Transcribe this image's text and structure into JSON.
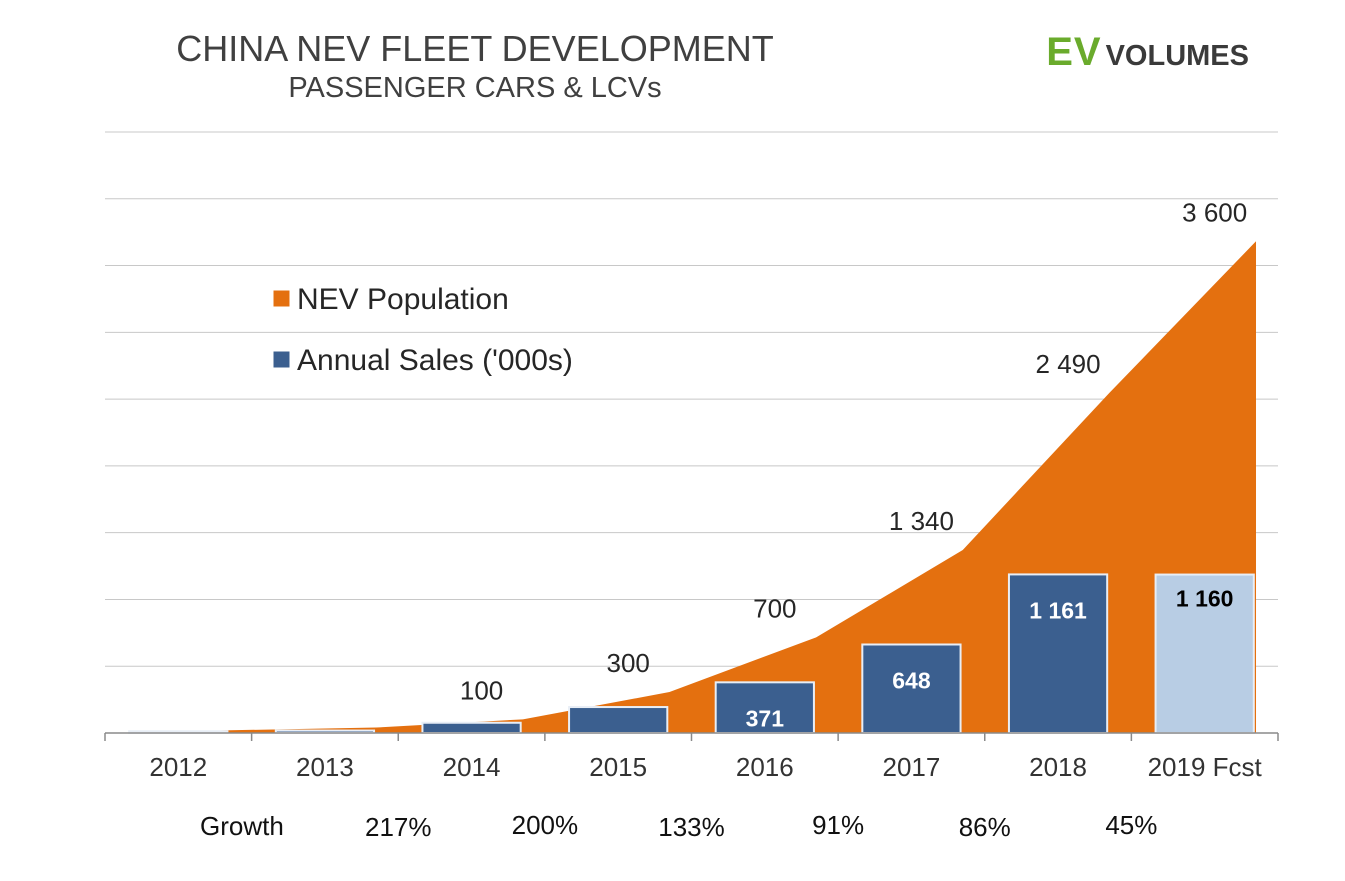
{
  "header": {
    "title": "CHINA NEV FLEET DEVELOPMENT",
    "subtitle": "PASSENGER CARS & LCVs"
  },
  "logo": {
    "ev": "EV",
    "volumes": "VOLUMES"
  },
  "colors": {
    "population": "#e4700f",
    "sales": "#3b5f8f",
    "forecast": "#b8cde4",
    "grid": "#c8c8c8",
    "axis": "#8a8a8a",
    "bar_border": "#e8eef6"
  },
  "chart_data": {
    "type": "area",
    "title": "CHINA NEV FLEET DEVELOPMENT",
    "subtitle": "PASSENGER CARS & LCVs",
    "categories": [
      "2012",
      "2013",
      "2014",
      "2015",
      "2016",
      "2017",
      "2018",
      "2019 Fcst"
    ],
    "ylim": [
      0,
      4400
    ],
    "grid": true,
    "legend_position": "top-left",
    "series": [
      {
        "name": "NEV Population",
        "type": "area",
        "values": [
          20,
          40,
          100,
          300,
          700,
          1340,
          2490,
          3600
        ],
        "labels": [
          "",
          "",
          "100",
          "300",
          "700",
          "1 340",
          "2 490",
          "3 600"
        ]
      },
      {
        "name": "Annual Sales ('000s)",
        "type": "bar",
        "values": [
          13,
          18,
          75,
          190,
          371,
          648,
          1161,
          1160
        ],
        "labels": [
          "",
          "",
          "",
          "",
          "371",
          "648",
          "1 161",
          "1 160"
        ]
      }
    ],
    "growth": {
      "label": "Growth",
      "values": [
        "217%",
        "200%",
        "133%",
        "91%",
        "86%",
        "45%"
      ]
    }
  }
}
